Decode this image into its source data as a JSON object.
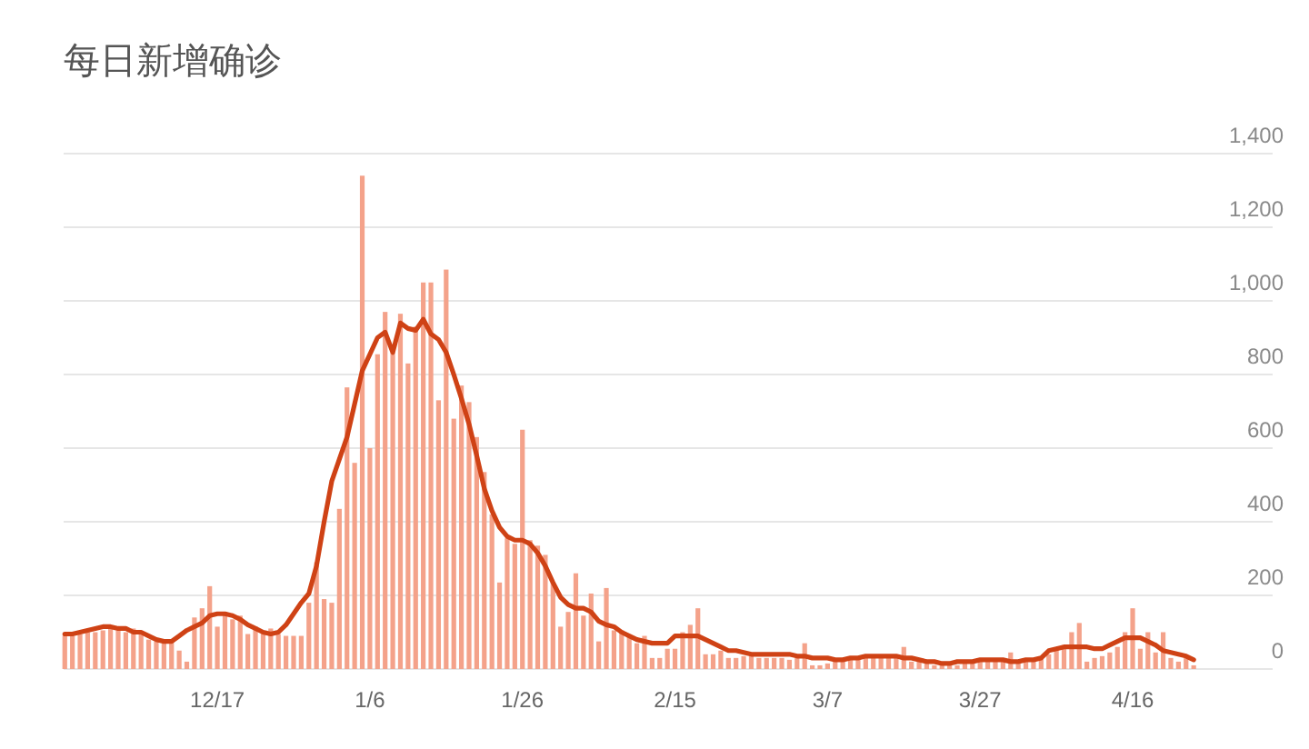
{
  "chart_data": {
    "type": "bar",
    "title": "每日新增确诊",
    "categories": [
      null,
      null,
      null,
      null,
      null,
      null,
      null,
      null,
      null,
      null,
      null,
      null,
      null,
      null,
      null,
      null,
      null,
      null,
      null,
      null,
      "12/17",
      null,
      null,
      null,
      null,
      null,
      null,
      null,
      null,
      null,
      null,
      null,
      null,
      null,
      null,
      null,
      null,
      null,
      null,
      null,
      "1/6",
      null,
      null,
      null,
      null,
      null,
      null,
      null,
      null,
      null,
      null,
      null,
      null,
      null,
      null,
      null,
      null,
      null,
      null,
      null,
      "1/26",
      null,
      null,
      null,
      null,
      null,
      null,
      null,
      null,
      null,
      null,
      null,
      null,
      null,
      null,
      null,
      null,
      null,
      null,
      null,
      "2/15",
      null,
      null,
      null,
      null,
      null,
      null,
      null,
      null,
      null,
      null,
      null,
      null,
      null,
      null,
      null,
      null,
      null,
      null,
      null,
      "3/7",
      null,
      null,
      null,
      null,
      null,
      null,
      null,
      null,
      null,
      null,
      null,
      null,
      null,
      null,
      null,
      null,
      null,
      null,
      null,
      "3/27",
      null,
      null,
      null,
      null,
      null,
      null,
      null,
      null,
      null,
      null,
      null,
      null,
      null,
      null,
      null,
      null,
      null,
      null,
      null,
      "4/16",
      null,
      null,
      null,
      null,
      null,
      null,
      null,
      null
    ],
    "ylim": [
      0,
      1400
    ],
    "yticks": [
      0,
      200,
      400,
      600,
      800,
      {
        "value": 1000,
        "label": "1,000"
      },
      {
        "value": 1200,
        "label": "1,200"
      },
      {
        "value": 1400,
        "label": "1,400"
      }
    ],
    "grid": "y",
    "series": [
      {
        "color": "#f4a28a",
        "values": [
          90,
          90,
          95,
          100,
          100,
          105,
          110,
          105,
          100,
          110,
          95,
          80,
          75,
          70,
          80,
          50,
          20,
          140,
          165,
          225,
          115,
          155,
          135,
          145,
          95,
          115,
          100,
          110,
          95,
          90,
          90,
          90,
          180,
          290,
          190,
          180,
          435,
          765,
          560,
          1340,
          600,
          855,
          970,
          860,
          965,
          830,
          930,
          1050,
          1050,
          730,
          1085,
          680,
          770,
          725,
          630,
          535,
          420,
          235,
          355,
          340,
          650,
          350,
          335,
          310,
          235,
          115,
          155,
          260,
          145,
          205,
          75,
          220,
          105,
          105,
          90,
          70,
          90,
          30,
          30,
          55,
          55,
          100,
          120,
          165,
          40,
          40,
          50,
          30,
          30,
          35,
          35,
          30,
          30,
          30,
          30,
          25,
          30,
          70,
          10,
          10,
          15,
          25,
          30,
          30,
          30,
          35,
          30,
          30,
          30,
          30,
          60,
          20,
          20,
          15,
          10,
          15,
          15,
          10,
          20,
          15,
          20,
          20,
          20,
          20,
          45,
          20,
          20,
          20,
          30,
          40,
          55,
          65,
          100,
          125,
          20,
          30,
          35,
          45,
          60,
          100,
          165,
          55,
          100,
          45,
          100,
          30,
          20,
          30,
          10
        ]
      },
      {
        "type": "line",
        "color": "#cf4215",
        "values": [
          95,
          95,
          100,
          105,
          110,
          115,
          115,
          110,
          110,
          100,
          100,
          90,
          80,
          75,
          75,
          90,
          105,
          115,
          125,
          145,
          150,
          150,
          145,
          135,
          120,
          110,
          100,
          95,
          100,
          120,
          150,
          180,
          205,
          280,
          400,
          510,
          570,
          630,
          720,
          810,
          855,
          900,
          915,
          860,
          940,
          925,
          920,
          950,
          910,
          895,
          860,
          800,
          735,
          665,
          580,
          490,
          430,
          385,
          360,
          350,
          350,
          340,
          315,
          280,
          235,
          195,
          175,
          165,
          165,
          155,
          130,
          120,
          115,
          100,
          90,
          80,
          75,
          70,
          70,
          70,
          90,
          90,
          90,
          90,
          80,
          70,
          60,
          50,
          50,
          45,
          40,
          40,
          40,
          40,
          40,
          40,
          35,
          35,
          30,
          30,
          30,
          25,
          25,
          30,
          30,
          35,
          35,
          35,
          35,
          35,
          30,
          30,
          25,
          20,
          20,
          15,
          15,
          20,
          20,
          20,
          25,
          25,
          25,
          25,
          20,
          20,
          25,
          25,
          30,
          50,
          55,
          60,
          60,
          60,
          60,
          55,
          55,
          65,
          75,
          85,
          85,
          85,
          75,
          65,
          50,
          45,
          40,
          35,
          25
        ]
      }
    ]
  }
}
